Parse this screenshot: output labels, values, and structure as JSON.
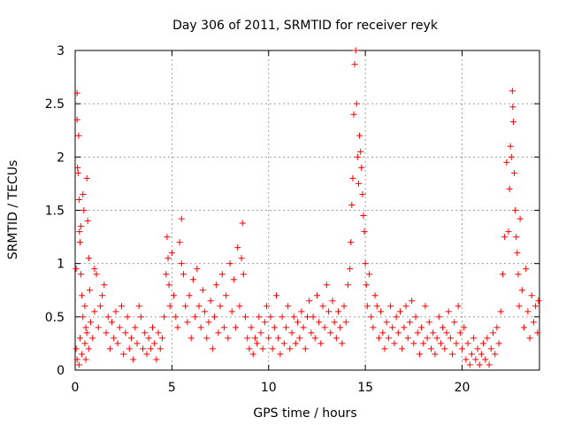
{
  "chart_data": {
    "type": "scatter",
    "title": "Day 306 of 2011, SRMTID for receiver reyk",
    "xlabel": "GPS time / hours",
    "ylabel": "SRMTID / TECUs",
    "xlim": [
      0,
      24
    ],
    "ylim": [
      0,
      3
    ],
    "xticks": [
      0,
      5,
      10,
      15,
      20
    ],
    "xtick_labels": [
      "0",
      "5",
      "10",
      "15",
      "20"
    ],
    "yticks": [
      0,
      0.5,
      1,
      1.5,
      2,
      2.5,
      3
    ],
    "ytick_labels": [
      "0",
      "0.5",
      "1",
      "1.5",
      "2",
      "2.5",
      "3"
    ],
    "grid": true,
    "marker": "+",
    "color": "#ff0000",
    "series": [
      {
        "name": "SRMTID",
        "points": [
          [
            0.05,
            0.95
          ],
          [
            0.1,
            2.6
          ],
          [
            0.1,
            2.35
          ],
          [
            0.12,
            1.9
          ],
          [
            0.15,
            1.85
          ],
          [
            0.18,
            2.2
          ],
          [
            0.2,
            1.6
          ],
          [
            0.22,
            1.3
          ],
          [
            0.25,
            1.2
          ],
          [
            0.3,
            1.35
          ],
          [
            0.3,
            0.9
          ],
          [
            0.35,
            0.7
          ],
          [
            0.4,
            1.65
          ],
          [
            0.45,
            1.5
          ],
          [
            0.5,
            0.6
          ],
          [
            0.55,
            0.4
          ],
          [
            0.6,
            1.8
          ],
          [
            0.65,
            1.4
          ],
          [
            0.7,
            1.05
          ],
          [
            0.75,
            0.75
          ],
          [
            0.05,
            0.2
          ],
          [
            0.1,
            0.1
          ],
          [
            0.2,
            0.05
          ],
          [
            0.25,
            0.3
          ],
          [
            0.35,
            0.15
          ],
          [
            0.4,
            0.5
          ],
          [
            0.5,
            0.25
          ],
          [
            0.55,
            0.1
          ],
          [
            0.6,
            0.35
          ],
          [
            0.7,
            0.2
          ],
          [
            0.8,
            0.45
          ],
          [
            0.9,
            0.3
          ],
          [
            1.0,
            0.55
          ],
          [
            1.0,
            0.95
          ],
          [
            1.1,
            0.9
          ],
          [
            1.2,
            0.4
          ],
          [
            1.3,
            0.6
          ],
          [
            1.4,
            0.7
          ],
          [
            1.5,
            0.8
          ],
          [
            1.6,
            0.35
          ],
          [
            1.7,
            0.5
          ],
          [
            1.8,
            0.2
          ],
          [
            1.9,
            0.45
          ],
          [
            2.0,
            0.3
          ],
          [
            2.1,
            0.55
          ],
          [
            2.2,
            0.25
          ],
          [
            2.3,
            0.4
          ],
          [
            2.4,
            0.6
          ],
          [
            2.5,
            0.15
          ],
          [
            2.6,
            0.35
          ],
          [
            2.7,
            0.5
          ],
          [
            2.8,
            0.2
          ],
          [
            2.9,
            0.3
          ],
          [
            3.0,
            0.1
          ],
          [
            3.1,
            0.4
          ],
          [
            3.2,
            0.25
          ],
          [
            3.3,
            0.6
          ],
          [
            3.4,
            0.5
          ],
          [
            3.5,
            0.2
          ],
          [
            3.6,
            0.35
          ],
          [
            3.7,
            0.15
          ],
          [
            3.8,
            0.3
          ],
          [
            3.9,
            0.2
          ],
          [
            4.0,
            0.4
          ],
          [
            4.1,
            0.25
          ],
          [
            4.2,
            0.1
          ],
          [
            4.3,
            0.35
          ],
          [
            4.4,
            0.2
          ],
          [
            4.5,
            0.3
          ],
          [
            4.6,
            0.5
          ],
          [
            4.7,
            0.9
          ],
          [
            4.75,
            1.25
          ],
          [
            4.8,
            1.05
          ],
          [
            4.85,
            0.8
          ],
          [
            4.9,
            0.6
          ],
          [
            5.0,
            1.1
          ],
          [
            5.1,
            0.7
          ],
          [
            5.2,
            0.5
          ],
          [
            5.3,
            0.4
          ],
          [
            5.4,
            1.2
          ],
          [
            5.5,
            1.0
          ],
          [
            5.5,
            1.42
          ],
          [
            5.6,
            0.9
          ],
          [
            5.7,
            0.6
          ],
          [
            5.8,
            0.45
          ],
          [
            5.9,
            0.7
          ],
          [
            6.0,
            0.3
          ],
          [
            6.1,
            0.85
          ],
          [
            6.2,
            0.5
          ],
          [
            6.3,
            0.95
          ],
          [
            6.4,
            0.6
          ],
          [
            6.5,
            0.4
          ],
          [
            6.6,
            0.75
          ],
          [
            6.7,
            0.55
          ],
          [
            6.8,
            0.3
          ],
          [
            6.9,
            0.45
          ],
          [
            7.0,
            0.65
          ],
          [
            7.1,
            0.2
          ],
          [
            7.2,
            0.5
          ],
          [
            7.3,
            0.8
          ],
          [
            7.4,
            0.35
          ],
          [
            7.5,
            0.6
          ],
          [
            7.6,
            0.9
          ],
          [
            7.7,
            0.4
          ],
          [
            7.8,
            0.7
          ],
          [
            7.9,
            0.3
          ],
          [
            8.0,
            1.0
          ],
          [
            8.1,
            0.55
          ],
          [
            8.2,
            0.85
          ],
          [
            8.3,
            0.4
          ],
          [
            8.4,
            1.15
          ],
          [
            8.5,
            0.6
          ],
          [
            8.6,
            1.05
          ],
          [
            8.65,
            1.38
          ],
          [
            8.7,
            0.9
          ],
          [
            8.8,
            0.5
          ],
          [
            8.9,
            0.3
          ],
          [
            9.0,
            0.2
          ],
          [
            9.1,
            0.4
          ],
          [
            9.2,
            0.15
          ],
          [
            9.3,
            0.3
          ],
          [
            9.4,
            0.25
          ],
          [
            9.5,
            0.5
          ],
          [
            9.6,
            0.35
          ],
          [
            9.7,
            0.2
          ],
          [
            9.8,
            0.45
          ],
          [
            9.9,
            0.6
          ],
          [
            10.0,
            0.3
          ],
          [
            10.1,
            0.5
          ],
          [
            10.2,
            0.2
          ],
          [
            10.3,
            0.4
          ],
          [
            10.4,
            0.7
          ],
          [
            10.5,
            0.3
          ],
          [
            10.6,
            0.15
          ],
          [
            10.7,
            0.5
          ],
          [
            10.8,
            0.25
          ],
          [
            10.9,
            0.4
          ],
          [
            11.0,
            0.6
          ],
          [
            11.1,
            0.2
          ],
          [
            11.2,
            0.35
          ],
          [
            11.3,
            0.5
          ],
          [
            11.4,
            0.25
          ],
          [
            11.5,
            0.45
          ],
          [
            11.6,
            0.3
          ],
          [
            11.7,
            0.55
          ],
          [
            11.8,
            0.4
          ],
          [
            11.9,
            0.2
          ],
          [
            12.0,
            0.5
          ],
          [
            12.1,
            0.65
          ],
          [
            12.2,
            0.35
          ],
          [
            12.3,
            0.5
          ],
          [
            12.4,
            0.3
          ],
          [
            12.5,
            0.7
          ],
          [
            12.6,
            0.45
          ],
          [
            12.7,
            0.25
          ],
          [
            12.8,
            0.6
          ],
          [
            12.9,
            0.4
          ],
          [
            13.0,
            0.8
          ],
          [
            13.1,
            0.55
          ],
          [
            13.2,
            0.35
          ],
          [
            13.3,
            0.65
          ],
          [
            13.4,
            0.45
          ],
          [
            13.5,
            0.3
          ],
          [
            13.6,
            0.55
          ],
          [
            13.7,
            0.4
          ],
          [
            13.8,
            0.25
          ],
          [
            13.9,
            0.6
          ],
          [
            14.0,
            0.45
          ],
          [
            14.1,
            0.8
          ],
          [
            14.2,
            0.95
          ],
          [
            14.25,
            1.2
          ],
          [
            14.3,
            1.55
          ],
          [
            14.35,
            1.8
          ],
          [
            14.4,
            2.4
          ],
          [
            14.45,
            2.87
          ],
          [
            14.5,
            3.0
          ],
          [
            14.55,
            2.5
          ],
          [
            14.6,
            2.0
          ],
          [
            14.65,
            1.75
          ],
          [
            14.7,
            2.2
          ],
          [
            14.75,
            2.05
          ],
          [
            14.8,
            1.9
          ],
          [
            14.85,
            1.65
          ],
          [
            14.9,
            1.45
          ],
          [
            14.95,
            1.3
          ],
          [
            15.0,
            1.0
          ],
          [
            15.05,
            0.8
          ],
          [
            15.1,
            0.6
          ],
          [
            15.2,
            0.9
          ],
          [
            15.3,
            0.5
          ],
          [
            15.4,
            0.4
          ],
          [
            15.5,
            0.7
          ],
          [
            15.6,
            0.6
          ],
          [
            15.7,
            0.3
          ],
          [
            15.8,
            0.55
          ],
          [
            15.9,
            0.35
          ],
          [
            16.0,
            0.2
          ],
          [
            16.1,
            0.45
          ],
          [
            16.2,
            0.3
          ],
          [
            16.3,
            0.6
          ],
          [
            16.4,
            0.4
          ],
          [
            16.5,
            0.25
          ],
          [
            16.6,
            0.5
          ],
          [
            16.7,
            0.35
          ],
          [
            16.8,
            0.55
          ],
          [
            16.9,
            0.2
          ],
          [
            17.0,
            0.4
          ],
          [
            17.1,
            0.6
          ],
          [
            17.2,
            0.3
          ],
          [
            17.3,
            0.45
          ],
          [
            17.4,
            0.65
          ],
          [
            17.5,
            0.25
          ],
          [
            17.6,
            0.5
          ],
          [
            17.7,
            0.35
          ],
          [
            17.8,
            0.15
          ],
          [
            17.9,
            0.4
          ],
          [
            18.0,
            0.25
          ],
          [
            18.1,
            0.6
          ],
          [
            18.2,
            0.3
          ],
          [
            18.3,
            0.45
          ],
          [
            18.4,
            0.2
          ],
          [
            18.5,
            0.35
          ],
          [
            18.6,
            0.15
          ],
          [
            18.7,
            0.3
          ],
          [
            18.8,
            0.5
          ],
          [
            18.9,
            0.25
          ],
          [
            19.0,
            0.4
          ],
          [
            19.1,
            0.2
          ],
          [
            19.2,
            0.35
          ],
          [
            19.3,
            0.55
          ],
          [
            19.4,
            0.3
          ],
          [
            19.5,
            0.15
          ],
          [
            19.6,
            0.45
          ],
          [
            19.7,
            0.25
          ],
          [
            19.8,
            0.6
          ],
          [
            19.9,
            0.35
          ],
          [
            20.0,
            0.2
          ],
          [
            20.1,
            0.4
          ],
          [
            20.2,
            0.1
          ],
          [
            20.3,
            0.25
          ],
          [
            20.4,
            0.05
          ],
          [
            20.5,
            0.15
          ],
          [
            20.6,
            0.3
          ],
          [
            20.7,
            0.1
          ],
          [
            20.8,
            0.2
          ],
          [
            20.9,
            0.05
          ],
          [
            21.0,
            0.15
          ],
          [
            21.1,
            0.25
          ],
          [
            21.2,
            0.1
          ],
          [
            21.3,
            0.3
          ],
          [
            21.4,
            0.05
          ],
          [
            21.5,
            0.2
          ],
          [
            21.6,
            0.35
          ],
          [
            21.7,
            0.15
          ],
          [
            21.8,
            0.4
          ],
          [
            21.9,
            0.25
          ],
          [
            22.0,
            0.55
          ],
          [
            22.1,
            0.9
          ],
          [
            22.2,
            1.25
          ],
          [
            22.3,
            1.95
          ],
          [
            22.4,
            1.3
          ],
          [
            22.45,
            1.7
          ],
          [
            22.5,
            2.1
          ],
          [
            22.55,
            2.0
          ],
          [
            22.6,
            2.62
          ],
          [
            22.62,
            2.47
          ],
          [
            22.65,
            2.33
          ],
          [
            22.7,
            1.85
          ],
          [
            22.75,
            1.5
          ],
          [
            22.8,
            1.25
          ],
          [
            22.85,
            1.1
          ],
          [
            22.9,
            0.9
          ],
          [
            22.95,
            0.6
          ],
          [
            23.0,
            1.42
          ],
          [
            23.1,
            0.75
          ],
          [
            23.2,
            0.4
          ],
          [
            23.3,
            0.95
          ],
          [
            23.4,
            0.55
          ],
          [
            23.5,
            0.3
          ],
          [
            23.6,
            0.7
          ],
          [
            23.7,
            0.45
          ],
          [
            23.8,
            0.6
          ],
          [
            23.9,
            0.35
          ],
          [
            23.95,
            0.65
          ]
        ]
      }
    ]
  }
}
